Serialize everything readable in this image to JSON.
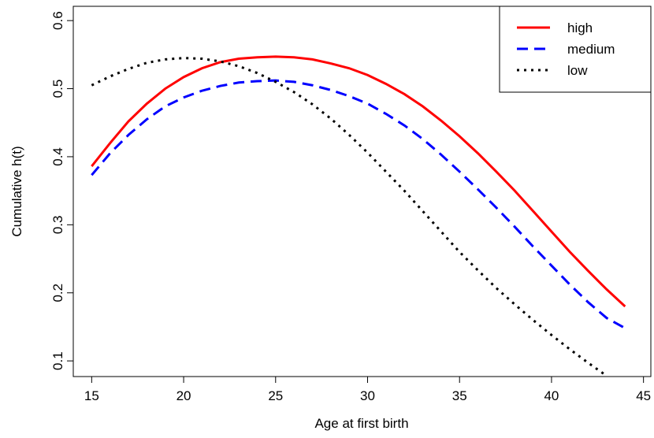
{
  "chart_data": {
    "type": "line",
    "xlabel": "Age at first birth",
    "ylabel": "Cumulative h(t)",
    "x": [
      15,
      16,
      17,
      18,
      19,
      20,
      21,
      22,
      23,
      24,
      25,
      26,
      27,
      28,
      29,
      30,
      31,
      32,
      33,
      34,
      35,
      36,
      37,
      38,
      39,
      40,
      41,
      42,
      43,
      44
    ],
    "series": [
      {
        "name": "high",
        "color": "#ff0000",
        "dash": "solid",
        "values": [
          0.386,
          0.42,
          0.452,
          0.478,
          0.5,
          0.517,
          0.53,
          0.539,
          0.544,
          0.546,
          0.547,
          0.546,
          0.543,
          0.537,
          0.53,
          0.52,
          0.507,
          0.492,
          0.474,
          0.453,
          0.43,
          0.405,
          0.378,
          0.35,
          0.32,
          0.29,
          0.26,
          0.232,
          0.205,
          0.18
        ]
      },
      {
        "name": "medium",
        "color": "#0000ff",
        "dash": "dashed",
        "values": [
          0.373,
          0.405,
          0.432,
          0.455,
          0.474,
          0.487,
          0.497,
          0.504,
          0.509,
          0.511,
          0.512,
          0.51,
          0.505,
          0.498,
          0.489,
          0.478,
          0.463,
          0.446,
          0.426,
          0.403,
          0.378,
          0.352,
          0.325,
          0.297,
          0.268,
          0.24,
          0.212,
          0.186,
          0.163,
          0.148
        ]
      },
      {
        "name": "low",
        "color": "#000000",
        "dash": "dotted",
        "values": [
          0.505,
          0.518,
          0.529,
          0.538,
          0.543,
          0.545,
          0.544,
          0.54,
          0.533,
          0.523,
          0.51,
          0.495,
          0.477,
          0.456,
          0.432,
          0.406,
          0.378,
          0.35,
          0.32,
          0.29,
          0.26,
          0.233,
          0.207,
          0.183,
          0.16,
          0.138,
          0.117,
          0.097,
          0.078,
          null
        ]
      }
    ],
    "xlim": [
      14.0,
      45.4
    ],
    "xticks": [
      15,
      20,
      25,
      30,
      35,
      40,
      45
    ],
    "ylim": [
      0.077,
      0.621
    ],
    "yticks": [
      0.1,
      0.2,
      0.3,
      0.4,
      0.5,
      0.6
    ],
    "legend": "top-right"
  }
}
